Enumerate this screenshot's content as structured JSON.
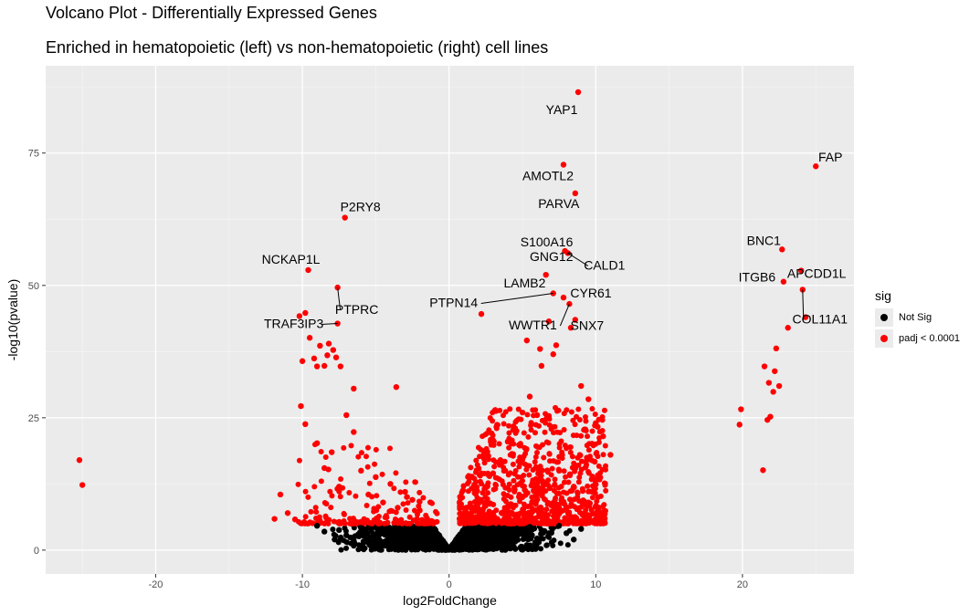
{
  "title": "Volcano Plot - Differentially Expressed Genes",
  "subtitle": "Enriched in hematopoietic (left) vs non-hematopoietic (right) cell lines",
  "legend": {
    "title": "sig",
    "items": [
      {
        "label": "Not Sig",
        "color": "#000000"
      },
      {
        "label": "padj < 0.0001",
        "color": "#ff0000"
      }
    ]
  },
  "colors": {
    "panel": "#ebebeb",
    "grid": "#ffffff",
    "sig": "#ff0000",
    "notsig": "#000000"
  },
  "chart_data": {
    "type": "scatter",
    "title": "Volcano Plot - Differentially Expressed Genes",
    "subtitle": "Enriched in hematopoietic (left) vs non-hematopoietic (right) cell lines",
    "xlabel": "log2FoldChange",
    "ylabel": "-log10(pvalue)",
    "xlim": [
      -27.5,
      27.6
    ],
    "ylim": [
      -4.5,
      91.5
    ],
    "x_ticks": [
      -20,
      -10,
      0,
      10,
      20
    ],
    "y_ticks": [
      0,
      25,
      50,
      75
    ],
    "grid": true,
    "legend_position": "right",
    "labeled_points": [
      {
        "gene": "YAP1",
        "x": 8.8,
        "y": 86.5
      },
      {
        "gene": "AMOTL2",
        "x": 7.8,
        "y": 72.8
      },
      {
        "gene": "FAP",
        "x": 25.0,
        "y": 72.5
      },
      {
        "gene": "PARVA",
        "x": 8.6,
        "y": 67.4
      },
      {
        "gene": "P2RY8",
        "x": -7.1,
        "y": 62.8
      },
      {
        "gene": "BNC1",
        "x": 22.7,
        "y": 56.8
      },
      {
        "gene": "S100A16",
        "x": 7.9,
        "y": 56.5
      },
      {
        "gene": "GNG12",
        "x": 8.1,
        "y": 56.3
      },
      {
        "gene": "CALD1",
        "x": 8.1,
        "y": 56.1
      },
      {
        "gene": "NCKAP1L",
        "x": -9.6,
        "y": 52.9
      },
      {
        "gene": "APCDD1L",
        "x": 24.0,
        "y": 52.8
      },
      {
        "gene": "ITGB6",
        "x": 22.8,
        "y": 50.7
      },
      {
        "gene": "PTPRC",
        "x": -7.6,
        "y": 49.6
      },
      {
        "gene": "LAMB2",
        "x": 6.4,
        "y": 48.2
      },
      {
        "gene": "COL11A1",
        "x": 24.1,
        "y": 49.2
      },
      {
        "gene": "CYR61",
        "x": 7.8,
        "y": 47.7
      },
      {
        "gene": "PTPN14",
        "x": 7.1,
        "y": 48.5
      },
      {
        "gene": "WWTR1",
        "x": 8.2,
        "y": 46.5
      },
      {
        "gene": "SNX7",
        "x": 8.6,
        "y": 43.5
      },
      {
        "gene": "TRAF3IP3",
        "x": -7.6,
        "y": 42.8
      }
    ],
    "series": [
      {
        "name": "Not Sig",
        "color": "#000000",
        "points": [
          [
            -9.0,
            4.6
          ],
          [
            -8.5,
            3.5
          ],
          [
            -7.8,
            2.0
          ],
          [
            -7.5,
            3.8
          ],
          [
            -7.0,
            2.8
          ],
          [
            -6.5,
            1.8
          ],
          [
            -6.0,
            4.2
          ],
          [
            -5.5,
            2.5
          ],
          [
            -5.0,
            3.0
          ],
          [
            -4.5,
            1.5
          ],
          [
            -4.0,
            3.6
          ],
          [
            -3.5,
            2.2
          ],
          [
            -3.0,
            4.0
          ],
          [
            -2.5,
            1.2
          ],
          [
            -2.0,
            3.4
          ],
          [
            -1.5,
            2.0
          ],
          [
            -1.0,
            1.0
          ],
          [
            -0.5,
            0.5
          ],
          [
            0.5,
            0.6
          ],
          [
            1.0,
            1.5
          ],
          [
            1.5,
            2.8
          ],
          [
            2.0,
            3.5
          ],
          [
            2.5,
            1.8
          ],
          [
            3.0,
            4.2
          ],
          [
            3.5,
            2.6
          ],
          [
            4.0,
            3.8
          ],
          [
            4.5,
            1.6
          ],
          [
            5.0,
            3.0
          ],
          [
            5.5,
            4.4
          ],
          [
            6.0,
            2.2
          ],
          [
            6.5,
            3.6
          ],
          [
            7.0,
            1.5
          ],
          [
            7.5,
            4.6
          ],
          [
            8.0,
            3.2
          ],
          [
            8.5,
            2.0
          ],
          [
            9.0,
            4.0
          ]
        ]
      },
      {
        "name": "padj < 0.0001",
        "color": "#ff0000",
        "points": [
          [
            -25.2,
            17.0
          ],
          [
            -25.0,
            12.3
          ],
          [
            -11.9,
            5.9
          ],
          [
            -11.5,
            10.5
          ],
          [
            -11.0,
            7.0
          ],
          [
            -10.5,
            5.8
          ],
          [
            -10.2,
            44.2
          ],
          [
            -10.0,
            35.7
          ],
          [
            -9.8,
            44.8
          ],
          [
            -9.6,
            52.9
          ],
          [
            -9.5,
            40.1
          ],
          [
            -9.2,
            36.2
          ],
          [
            -9.0,
            34.7
          ],
          [
            -8.8,
            38.6
          ],
          [
            -8.5,
            34.8
          ],
          [
            -8.3,
            36.8
          ],
          [
            -8.2,
            39.0
          ],
          [
            -7.9,
            37.8
          ],
          [
            -7.7,
            36.4
          ],
          [
            -7.6,
            49.6
          ],
          [
            -7.6,
            42.8
          ],
          [
            -7.4,
            34.7
          ],
          [
            -7.1,
            62.8
          ],
          [
            -6.5,
            30.5
          ],
          [
            -10.1,
            27.2
          ],
          [
            -9.8,
            23.8
          ],
          [
            -9.0,
            20.2
          ],
          [
            -8.5,
            15.5
          ],
          [
            -8.0,
            18.5
          ],
          [
            -7.5,
            12.0
          ],
          [
            -7.0,
            25.5
          ],
          [
            -6.5,
            22.3
          ],
          [
            -6.0,
            15.0
          ],
          [
            -5.5,
            10.5
          ],
          [
            -5.0,
            13.8
          ],
          [
            -4.5,
            9.0
          ],
          [
            -4.0,
            12.5
          ],
          [
            -3.6,
            30.8
          ],
          [
            -3.5,
            8.0
          ],
          [
            -3.0,
            11.0
          ],
          [
            -2.5,
            9.5
          ],
          [
            -2.0,
            7.5
          ],
          [
            -1.5,
            6.0
          ],
          [
            -1.2,
            5.5
          ],
          [
            1.2,
            5.5
          ],
          [
            1.5,
            7.0
          ],
          [
            2.0,
            9.5
          ],
          [
            2.2,
            44.6
          ],
          [
            2.5,
            12.0
          ],
          [
            3.0,
            14.5
          ],
          [
            3.5,
            17.0
          ],
          [
            4.0,
            20.5
          ],
          [
            4.5,
            23.0
          ],
          [
            5.0,
            26.0
          ],
          [
            5.3,
            39.6
          ],
          [
            5.5,
            29.0
          ],
          [
            6.0,
            25.5
          ],
          [
            6.2,
            38.0
          ],
          [
            6.3,
            34.8
          ],
          [
            6.6,
            52.0
          ],
          [
            6.8,
            43.2
          ],
          [
            7.1,
            48.5
          ],
          [
            7.1,
            37.0
          ],
          [
            7.3,
            38.7
          ],
          [
            7.8,
            72.8
          ],
          [
            7.8,
            47.7
          ],
          [
            7.9,
            56.5
          ],
          [
            8.1,
            56.1
          ],
          [
            8.2,
            46.5
          ],
          [
            8.3,
            42.0
          ],
          [
            8.6,
            67.4
          ],
          [
            8.6,
            43.5
          ],
          [
            8.8,
            86.5
          ],
          [
            9.0,
            31.0
          ],
          [
            9.5,
            28.5
          ],
          [
            10.0,
            24.0
          ],
          [
            10.5,
            21.5
          ],
          [
            11.0,
            18.0
          ],
          [
            7.5,
            15.0
          ],
          [
            8.5,
            12.0
          ],
          [
            9.5,
            9.0
          ],
          [
            10.5,
            7.2
          ],
          [
            3.0,
            6.5
          ],
          [
            4.0,
            8.0
          ],
          [
            5.0,
            10.0
          ],
          [
            6.0,
            12.5
          ],
          [
            19.8,
            23.7
          ],
          [
            19.9,
            26.6
          ],
          [
            21.4,
            15.1
          ],
          [
            21.5,
            34.7
          ],
          [
            21.7,
            24.6
          ],
          [
            21.8,
            31.6
          ],
          [
            21.9,
            25.2
          ],
          [
            22.1,
            29.9
          ],
          [
            22.2,
            33.8
          ],
          [
            22.3,
            38.1
          ],
          [
            22.5,
            31.0
          ],
          [
            22.7,
            56.8
          ],
          [
            22.8,
            50.7
          ],
          [
            23.1,
            42.0
          ],
          [
            24.0,
            52.8
          ],
          [
            24.1,
            49.2
          ],
          [
            24.3,
            44.0
          ],
          [
            25.0,
            72.5
          ]
        ]
      }
    ]
  }
}
